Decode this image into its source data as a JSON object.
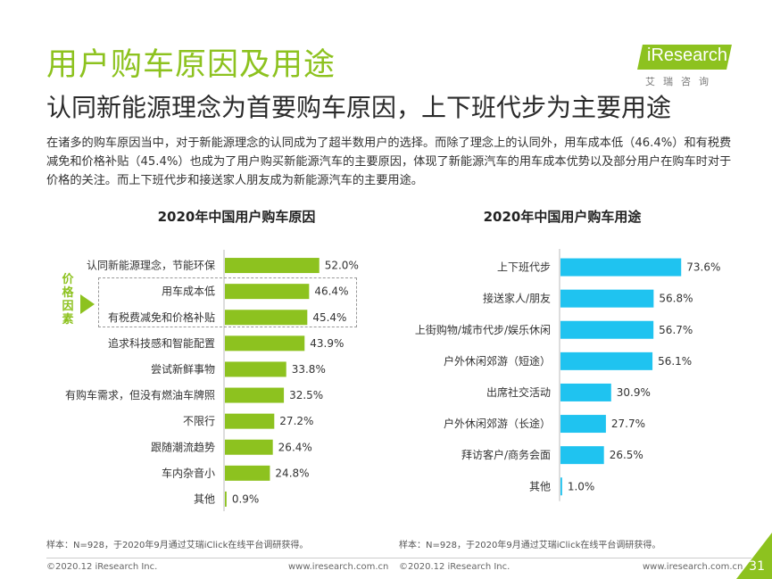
{
  "page": {
    "title": "用户购车原因及用途",
    "subtitle": "认同新能源理念为首要购车原因，上下班代步为主要用途",
    "description": "在诸多的购车原因当中，对于新能源理念的认同成为了超半数用户的选择。而除了理念上的认同外，用车成本低（46.4%）和有税费减免和价格补贴（45.4%）也成为了用户购买新能源汽车的主要原因，体现了新能源汽车的用车成本优势以及部分用户在购车时对于价格的关注。而上下班代步和接送家人朋友成为新能源汽车的主要用途。",
    "logo_text": "iResearch",
    "logo_sub": "艾瑞咨询",
    "price_factor_label": "价格因素",
    "note_left": "样本：N=928，于2020年9月通过艾瑞iClick在线平台调研获得。",
    "note_right": "样本：N=928，于2020年9月通过艾瑞iClick在线平台调研获得。",
    "footer_copyright_left": "©2020.12 iResearch Inc.",
    "footer_url_left": "www.iresearch.com.cn",
    "footer_copyright_right": "©2020.12 iResearch Inc.",
    "footer_url_right": "www.iresearch.com.cn",
    "page_number": "31"
  },
  "colors": {
    "accent_green": "#8dc21f",
    "bar_blue": "#1fc3f0"
  },
  "chart_data": [
    {
      "type": "bar",
      "orientation": "horizontal",
      "title": "2020年中国用户购车原因",
      "categories": [
        "认同新能源理念，节能环保",
        "用车成本低",
        "有税费减免和价格补贴",
        "追求科技感和智能配置",
        "尝试新鲜事物",
        "有购车需求，但没有燃油车牌照",
        "不限行",
        "跟随潮流趋势",
        "车内杂音小",
        "其他"
      ],
      "values": [
        52.0,
        46.4,
        45.4,
        43.9,
        33.8,
        32.5,
        27.2,
        26.4,
        24.8,
        0.9
      ],
      "value_labels": [
        "52.0%",
        "46.4%",
        "45.4%",
        "43.9%",
        "33.8%",
        "32.5%",
        "27.2%",
        "26.4%",
        "24.8%",
        "0.9%"
      ],
      "unit": "%",
      "color": "#8dc21f",
      "xlim": [
        0,
        60
      ]
    },
    {
      "type": "bar",
      "orientation": "horizontal",
      "title": "2020年中国用户购车用途",
      "categories": [
        "上下班代步",
        "接送家人/朋友",
        "上街购物/城市代步/娱乐休闲",
        "户外休闲郊游（短途）",
        "出席社交活动",
        "户外休闲郊游（长途）",
        "拜访客户/商务会面",
        "其他"
      ],
      "values": [
        73.6,
        56.8,
        56.7,
        56.1,
        30.9,
        27.7,
        26.5,
        1.0
      ],
      "value_labels": [
        "73.6%",
        "56.8%",
        "56.7%",
        "56.1%",
        "30.9%",
        "27.7%",
        "26.5%",
        "1.0%"
      ],
      "unit": "%",
      "color": "#1fc3f0",
      "xlim": [
        0,
        80
      ]
    }
  ]
}
